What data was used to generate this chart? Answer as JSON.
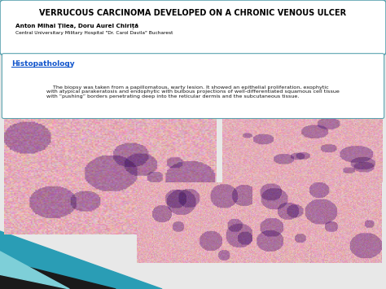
{
  "title": "VERRUCOUS CARCINOMA DEVELOPED ON A CHRONIC VENOUS ULCER",
  "author": "Anton Mihai Ţilea, Doru Aurel Chiriță",
  "institution": "Central Universitary Military Hospital \"Dr. Carol Davila\" Bucharest",
  "section_title": "Histopathology",
  "body_text": "    The biopsy was taken from a papillomatous, warty lesion. It showed an epithelial proliferation, exophytic\nwith atypical parakeratosis and endophytic with bulbous projections of well-differentiated squamous cell tissue\nwith “pushing” borders penetrating deep into the reticular dermis and the subcutaneous tissue.",
  "slide_bg": "#e8e8e8",
  "header_bg": "#ffffff",
  "header_border": "#5ba3b0",
  "section_color": "#1155cc",
  "title_color": "#000000",
  "body_color": "#111111",
  "teal_color": "#2a9db5",
  "dark_color": "#1a1a1a",
  "light_teal": "#7ecfd8"
}
